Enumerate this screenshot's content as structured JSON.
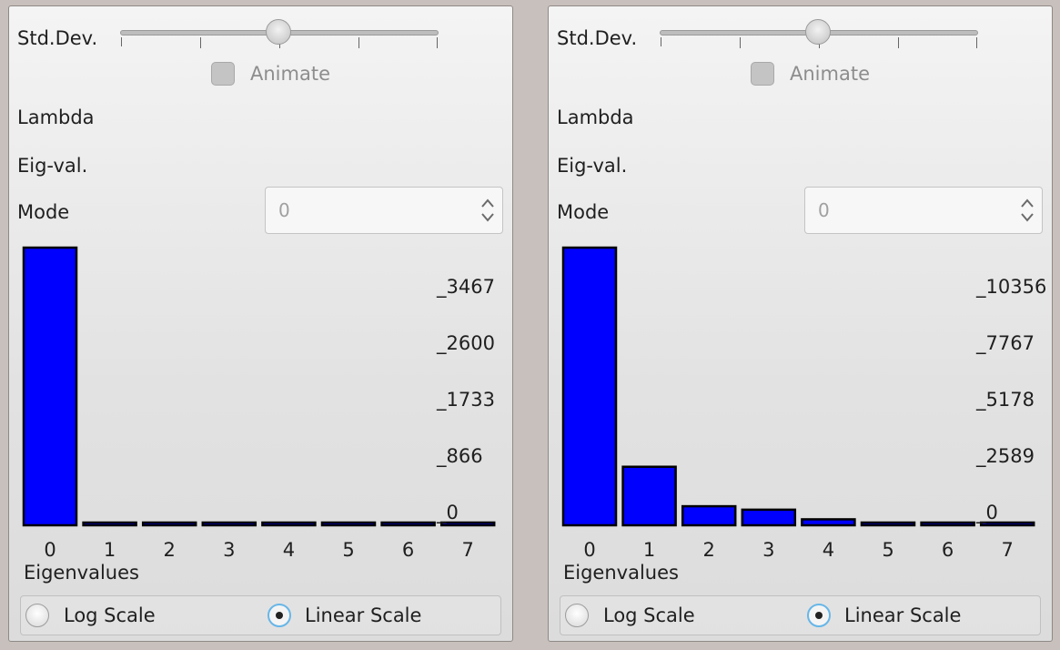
{
  "colors": {
    "bar_fill": "#0000ff",
    "bar_stroke": "#000000",
    "accent": "#67b6e8"
  },
  "panels": [
    {
      "std_dev_label": "Std.Dev.",
      "slider_ticks": 5,
      "slider_position": 0.5,
      "animate_label": "Animate",
      "animate_checked": false,
      "lambda_label": "Lambda",
      "eigval_label": "Eig-val.",
      "mode_label": "Mode",
      "mode_value": "0",
      "log_scale_label": "Log Scale",
      "linear_scale_label": "Linear Scale",
      "selected_scale": "linear",
      "chart_data": {
        "type": "bar",
        "xlabel": "Eigenvalues",
        "categories": [
          "0",
          "1",
          "2",
          "3",
          "4",
          "5",
          "6",
          "7"
        ],
        "values": [
          4080,
          0,
          0,
          0,
          0,
          0,
          0,
          0
        ],
        "ytick_labels": [
          "_0",
          "_866",
          "_1733",
          "_2600",
          "_3467"
        ],
        "ylim": [
          0,
          4080
        ]
      }
    },
    {
      "std_dev_label": "Std.Dev.",
      "slider_ticks": 5,
      "slider_position": 0.5,
      "animate_label": "Animate",
      "animate_checked": false,
      "lambda_label": "Lambda",
      "eigval_label": "Eig-val.",
      "mode_label": "Mode",
      "mode_value": "0",
      "log_scale_label": "Log Scale",
      "linear_scale_label": "Linear Scale",
      "selected_scale": "linear",
      "chart_data": {
        "type": "bar",
        "xlabel": "Eigenvalues",
        "categories": [
          "0",
          "1",
          "2",
          "3",
          "4",
          "5",
          "6",
          "7"
        ],
        "values": [
          12100,
          2550,
          830,
          680,
          260,
          80,
          0,
          0
        ],
        "ytick_labels": [
          "_0",
          "_2589",
          "_5178",
          "_7767",
          "_10356"
        ],
        "ylim": [
          0,
          12100
        ]
      }
    }
  ]
}
